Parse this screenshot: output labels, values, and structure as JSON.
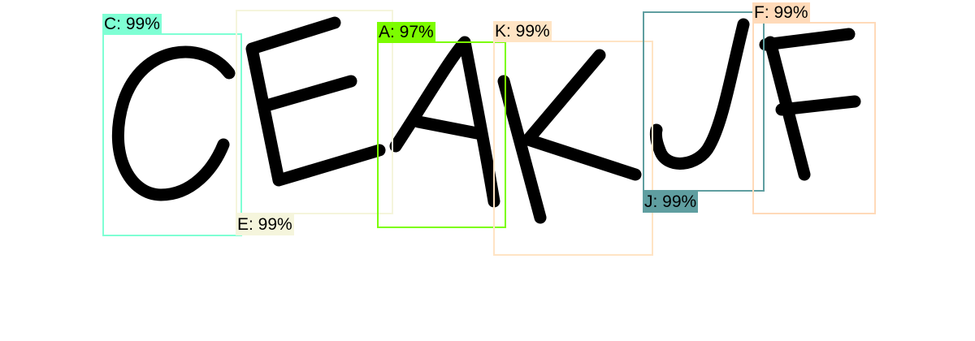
{
  "detections": [
    {
      "label": "C: 99%",
      "color": "#7fffd4"
    },
    {
      "label": "E: 99%",
      "color": "#f5f5dc"
    },
    {
      "label": "A: 97%",
      "color": "#7cfc00"
    },
    {
      "label": "K: 99%",
      "color": "#ffe4c4"
    },
    {
      "label": "J: 99%",
      "color": "#5f9ea0"
    },
    {
      "label": "F: 99%",
      "color": "#ffdab9"
    }
  ]
}
